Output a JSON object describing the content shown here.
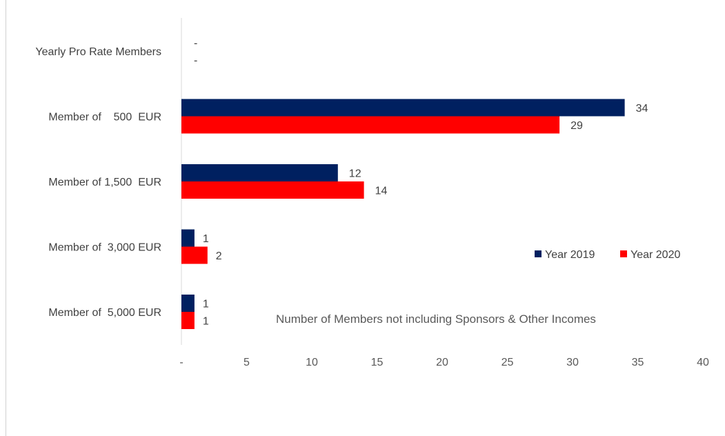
{
  "chart_data": {
    "type": "bar",
    "orientation": "horizontal",
    "categories": [
      "Yearly Pro Rate Members",
      "Member of    500  EUR",
      "Member of 1,500  EUR",
      "Member of  3,000 EUR",
      "Member of  5,000 EUR"
    ],
    "series": [
      {
        "name": "Year 2019",
        "color": "#002060",
        "values": [
          0,
          34,
          12,
          1,
          1
        ],
        "labels": [
          "-",
          "34",
          "12",
          "1",
          "1"
        ]
      },
      {
        "name": "Year 2020",
        "color": "#ff0000",
        "values": [
          0,
          29,
          14,
          2,
          1
        ],
        "labels": [
          "-",
          "29",
          "14",
          "2",
          "1"
        ]
      }
    ],
    "xlim": [
      0,
      40
    ],
    "x_ticks": [
      0,
      5,
      10,
      15,
      20,
      25,
      30,
      35,
      40
    ],
    "x_tick_labels": [
      "-",
      "5",
      "10",
      "15",
      "20",
      "25",
      "30",
      "35",
      "40"
    ],
    "annotation": "Number of Members not including Sponsors & Other Incomes",
    "legend_position": "right",
    "grid": false
  }
}
